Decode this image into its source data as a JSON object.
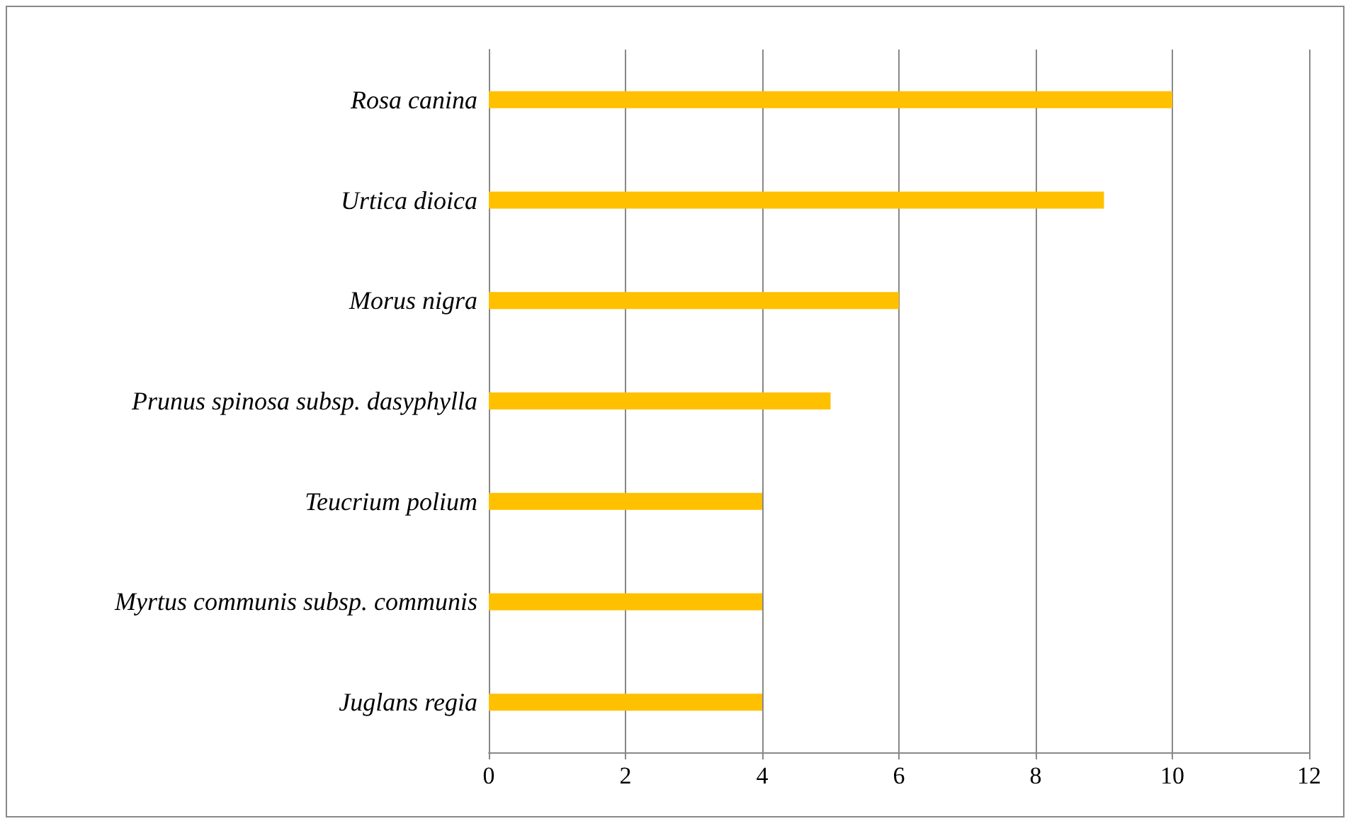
{
  "chart_data": {
    "type": "bar",
    "orientation": "horizontal",
    "categories": [
      "Rosa canina",
      "Urtica dioica",
      "Morus nigra",
      "Prunus spinosa subsp. dasyphylla",
      "Teucrium polium",
      "Myrtus communis subsp. communis",
      "Juglans regia"
    ],
    "values": [
      10,
      9,
      6,
      5,
      4,
      4,
      4
    ],
    "color": "#ffc000",
    "xlim": [
      0,
      12
    ],
    "xticks": [
      0,
      2,
      4,
      6,
      8,
      10,
      12
    ],
    "grid": "x"
  }
}
